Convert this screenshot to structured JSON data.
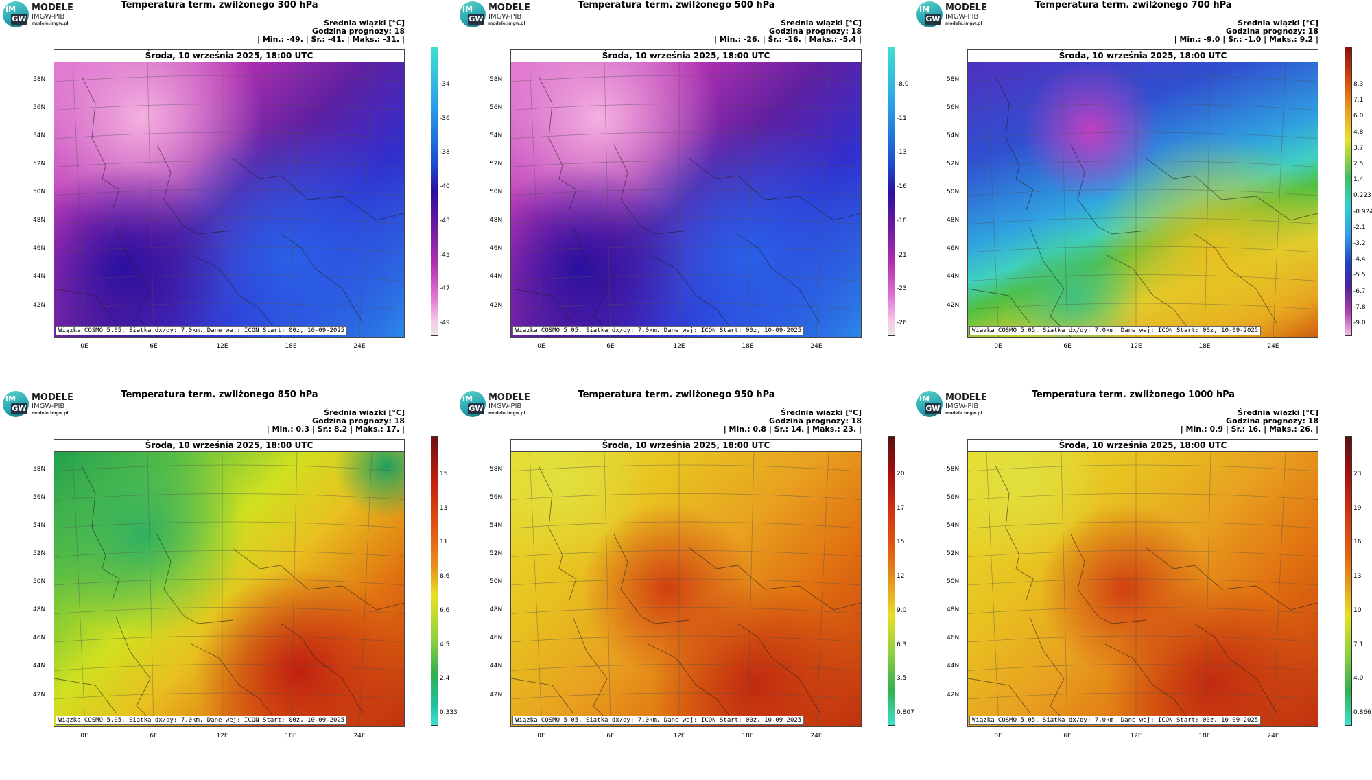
{
  "logo": {
    "line1": "MODELE",
    "line2": "IMGW-PIB",
    "line3": "modele.imgw.pl",
    "badge_top": "IM",
    "badge_bottom": "GW"
  },
  "common": {
    "date": "Środa, 10 września 2025, 18:00 UTC",
    "footer": "Wiązka COSMO 5.05. Siatka dx/dy: 7.0km. Dane wej: ICON Start: 00z, 10-09-2025",
    "info_line1": "Średnia wiązki [°C]",
    "info_line2": "Godzina prognozy: 18",
    "lat_labels": [
      "58N",
      "56N",
      "54N",
      "52N",
      "50N",
      "48N",
      "46N",
      "44N",
      "42N"
    ],
    "lon_labels": [
      "0E",
      "6E",
      "12E",
      "18E",
      "24E"
    ]
  },
  "panels": [
    {
      "title": "Temperatura term. zwilżonego 300 hPa",
      "stats": "| Min.:   -49. | Śr.:   -41. | Maks.:   -31. |",
      "colorbar": {
        "ticks": [
          "-34",
          "-36",
          "-38",
          "-40",
          "-43",
          "-45",
          "-47",
          "-49"
        ]
      },
      "scheme": "cold"
    },
    {
      "title": "Temperatura term. zwilżonego 500 hPa",
      "stats": "| Min.:   -26. | Śr.:   -16. | Maks.:   -5.4 |",
      "colorbar": {
        "ticks": [
          "-8.0",
          "-11",
          "-13",
          "-16",
          "-18",
          "-21",
          "-23",
          "-26"
        ]
      },
      "scheme": "cold"
    },
    {
      "title": "Temperatura term. zwilżonego 700 hPa",
      "stats": "| Min.:   -9.0 | Śr.:   -1.0 | Maks.:   9.2 |",
      "colorbar": {
        "ticks": [
          "8.3",
          "7.1",
          "6.0",
          "4.8",
          "3.7",
          "2.5",
          "1.4",
          "0.223",
          "-0.924",
          "-2.1",
          "-3.2",
          "-4.4",
          "-5.5",
          "-6.7",
          "-7.8",
          "-9.0"
        ]
      },
      "scheme": "mixed"
    },
    {
      "title": "Temperatura term. zwilżonego 850 hPa",
      "stats": "| Min.:   0.3 | Śr.:   8.2 | Maks.:   17. |",
      "colorbar": {
        "ticks": [
          "15",
          "13",
          "11",
          "8.6",
          "6.6",
          "4.5",
          "2.4",
          "0.333"
        ]
      },
      "scheme": "warm-green"
    },
    {
      "title": "Temperatura term. zwilżonego 950 hPa",
      "stats": "| Min.:   0.8 | Śr.:   14. | Maks.:   23. |",
      "colorbar": {
        "ticks": [
          "20",
          "17",
          "15",
          "12",
          "9.0",
          "6.3",
          "3.5",
          "0.807"
        ]
      },
      "scheme": "warm"
    },
    {
      "title": "Temperatura term. zwilżonego 1000 hPa",
      "stats": "| Min.:   0.9 | Śr.:   16. | Maks.:   26. |",
      "colorbar": {
        "ticks": [
          "23",
          "19",
          "16",
          "13",
          "10",
          "7.1",
          "4.0",
          "0.866"
        ]
      },
      "scheme": "warm"
    }
  ]
}
